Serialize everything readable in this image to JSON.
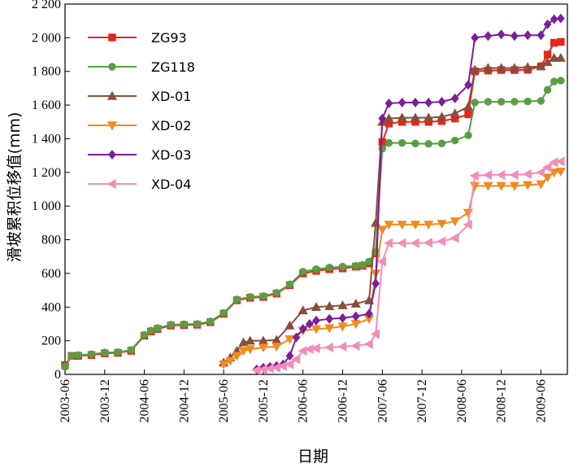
{
  "chart_data": {
    "type": "line",
    "xlabel": "日期",
    "ylabel": "滑坡累积位移值(mm)",
    "ylim": [
      0,
      2200
    ],
    "yticks": [
      0,
      200,
      400,
      600,
      800,
      1000,
      1200,
      1400,
      1600,
      1800,
      2000,
      2200
    ],
    "ytick_labels": [
      "0",
      "200",
      "400",
      "600",
      "800",
      "1 000",
      "1 200",
      "1 400",
      "1 600",
      "1 800",
      "2 000",
      "2 200"
    ],
    "xlim": [
      "2003-06",
      "2009-10"
    ],
    "xtick_labels": [
      "2003-06",
      "2003-12",
      "2004-06",
      "2004-12",
      "2005-06",
      "2005-12",
      "2006-06",
      "2006-12",
      "2007-06",
      "2007-12",
      "2008-06",
      "2008-12",
      "2009-06"
    ],
    "grid": false,
    "legend_position": "top-left",
    "series": [
      {
        "name": "ZG93",
        "color": "#e8251c",
        "marker": "square",
        "x": [
          "2003-06",
          "2003-07",
          "2003-08",
          "2003-10",
          "2003-12",
          "2004-02",
          "2004-04",
          "2004-06",
          "2004-07",
          "2004-08",
          "2004-10",
          "2004-12",
          "2005-02",
          "2005-04",
          "2005-06",
          "2005-08",
          "2005-10",
          "2005-12",
          "2006-02",
          "2006-04",
          "2006-06",
          "2006-08",
          "2006-10",
          "2006-12",
          "2007-02",
          "2007-03",
          "2007-04",
          "2007-05",
          "2007-06",
          "2007-07",
          "2007-09",
          "2007-11",
          "2008-01",
          "2008-03",
          "2008-05",
          "2008-07",
          "2008-08",
          "2008-10",
          "2008-12",
          "2009-02",
          "2009-04",
          "2009-06",
          "2009-07",
          "2009-08",
          "2009-09"
        ],
        "values": [
          55,
          110,
          110,
          115,
          125,
          128,
          140,
          230,
          255,
          270,
          290,
          293,
          295,
          310,
          360,
          440,
          455,
          460,
          480,
          530,
          600,
          615,
          625,
          630,
          640,
          645,
          660,
          720,
          1380,
          1490,
          1500,
          1500,
          1500,
          1505,
          1520,
          1545,
          1800,
          1805,
          1808,
          1808,
          1810,
          1830,
          1900,
          1970,
          1975
        ]
      },
      {
        "name": "ZG118",
        "color": "#5a9e44",
        "marker": "circle",
        "x": [
          "2003-06",
          "2003-07",
          "2003-08",
          "2003-10",
          "2003-12",
          "2004-02",
          "2004-04",
          "2004-06",
          "2004-07",
          "2004-08",
          "2004-10",
          "2004-12",
          "2005-02",
          "2005-04",
          "2005-06",
          "2005-08",
          "2005-10",
          "2005-12",
          "2006-02",
          "2006-04",
          "2006-06",
          "2006-08",
          "2006-10",
          "2006-12",
          "2007-02",
          "2007-03",
          "2007-04",
          "2007-05",
          "2007-06",
          "2007-07",
          "2007-09",
          "2007-11",
          "2008-01",
          "2008-03",
          "2008-05",
          "2008-07",
          "2008-08",
          "2008-10",
          "2008-12",
          "2009-02",
          "2009-04",
          "2009-06",
          "2009-07",
          "2009-08",
          "2009-09"
        ],
        "values": [
          45,
          110,
          115,
          120,
          130,
          132,
          145,
          235,
          260,
          275,
          295,
          298,
          300,
          315,
          365,
          445,
          460,
          465,
          485,
          535,
          610,
          625,
          635,
          640,
          645,
          650,
          670,
          730,
          1340,
          1375,
          1375,
          1372,
          1370,
          1372,
          1390,
          1420,
          1615,
          1620,
          1620,
          1620,
          1622,
          1625,
          1690,
          1740,
          1745
        ]
      },
      {
        "name": "XD-01",
        "color": "#8a4e3a",
        "marker": "triangle-up",
        "x": [
          "2005-06",
          "2005-07",
          "2005-08",
          "2005-09",
          "2005-10",
          "2005-12",
          "2006-02",
          "2006-04",
          "2006-06",
          "2006-08",
          "2006-10",
          "2006-12",
          "2007-02",
          "2007-04",
          "2007-05",
          "2007-06",
          "2007-07",
          "2007-09",
          "2007-11",
          "2008-01",
          "2008-03",
          "2008-05",
          "2008-07",
          "2008-08",
          "2008-10",
          "2008-12",
          "2009-02",
          "2009-04",
          "2009-06",
          "2009-07",
          "2009-08",
          "2009-09"
        ],
        "values": [
          70,
          100,
          140,
          190,
          200,
          200,
          205,
          290,
          380,
          400,
          405,
          410,
          420,
          440,
          900,
          1500,
          1520,
          1525,
          1525,
          1525,
          1530,
          1550,
          1590,
          1810,
          1820,
          1820,
          1820,
          1825,
          1830,
          1855,
          1880,
          1880
        ]
      },
      {
        "name": "XD-02",
        "color": "#f28a1c",
        "marker": "triangle-down",
        "x": [
          "2005-06",
          "2005-07",
          "2005-08",
          "2005-09",
          "2005-10",
          "2005-12",
          "2006-02",
          "2006-04",
          "2006-06",
          "2006-08",
          "2006-10",
          "2006-12",
          "2007-02",
          "2007-04",
          "2007-05",
          "2007-06",
          "2007-07",
          "2007-09",
          "2007-11",
          "2008-01",
          "2008-03",
          "2008-05",
          "2008-07",
          "2008-08",
          "2008-10",
          "2008-12",
          "2009-02",
          "2009-04",
          "2009-06",
          "2009-07",
          "2009-08",
          "2009-09"
        ],
        "values": [
          60,
          80,
          110,
          140,
          150,
          160,
          165,
          210,
          260,
          270,
          275,
          285,
          300,
          330,
          600,
          860,
          890,
          890,
          890,
          890,
          895,
          910,
          960,
          1120,
          1120,
          1120,
          1120,
          1125,
          1130,
          1170,
          1200,
          1205
        ]
      },
      {
        "name": "XD-03",
        "color": "#7b1f9a",
        "marker": "diamond",
        "x": [
          "2005-11",
          "2005-12",
          "2006-01",
          "2006-02",
          "2006-03",
          "2006-04",
          "2006-05",
          "2006-06",
          "2006-07",
          "2006-08",
          "2006-10",
          "2006-12",
          "2007-02",
          "2007-04",
          "2007-05",
          "2007-06",
          "2007-07",
          "2007-09",
          "2007-11",
          "2008-01",
          "2008-03",
          "2008-05",
          "2008-07",
          "2008-08",
          "2008-10",
          "2008-12",
          "2009-02",
          "2009-04",
          "2009-06",
          "2009-07",
          "2009-08",
          "2009-09"
        ],
        "values": [
          30,
          40,
          45,
          50,
          60,
          110,
          220,
          270,
          300,
          320,
          330,
          335,
          345,
          360,
          540,
          1520,
          1610,
          1615,
          1615,
          1615,
          1620,
          1640,
          1720,
          2000,
          2010,
          2020,
          2010,
          2015,
          2015,
          2080,
          2110,
          2115
        ]
      },
      {
        "name": "XD-04",
        "color": "#f28cb8",
        "marker": "triangle-left",
        "x": [
          "2005-11",
          "2005-12",
          "2006-01",
          "2006-02",
          "2006-03",
          "2006-04",
          "2006-05",
          "2006-06",
          "2006-07",
          "2006-08",
          "2006-10",
          "2006-12",
          "2007-02",
          "2007-04",
          "2007-05",
          "2007-06",
          "2007-07",
          "2007-09",
          "2007-11",
          "2008-01",
          "2008-03",
          "2008-05",
          "2008-07",
          "2008-08",
          "2008-10",
          "2008-12",
          "2009-02",
          "2009-04",
          "2009-06",
          "2009-07",
          "2009-08",
          "2009-09"
        ],
        "values": [
          25,
          30,
          35,
          40,
          50,
          60,
          90,
          140,
          150,
          155,
          160,
          165,
          170,
          180,
          240,
          670,
          780,
          780,
          780,
          782,
          790,
          810,
          890,
          1180,
          1185,
          1185,
          1185,
          1190,
          1200,
          1230,
          1260,
          1265
        ]
      }
    ]
  }
}
